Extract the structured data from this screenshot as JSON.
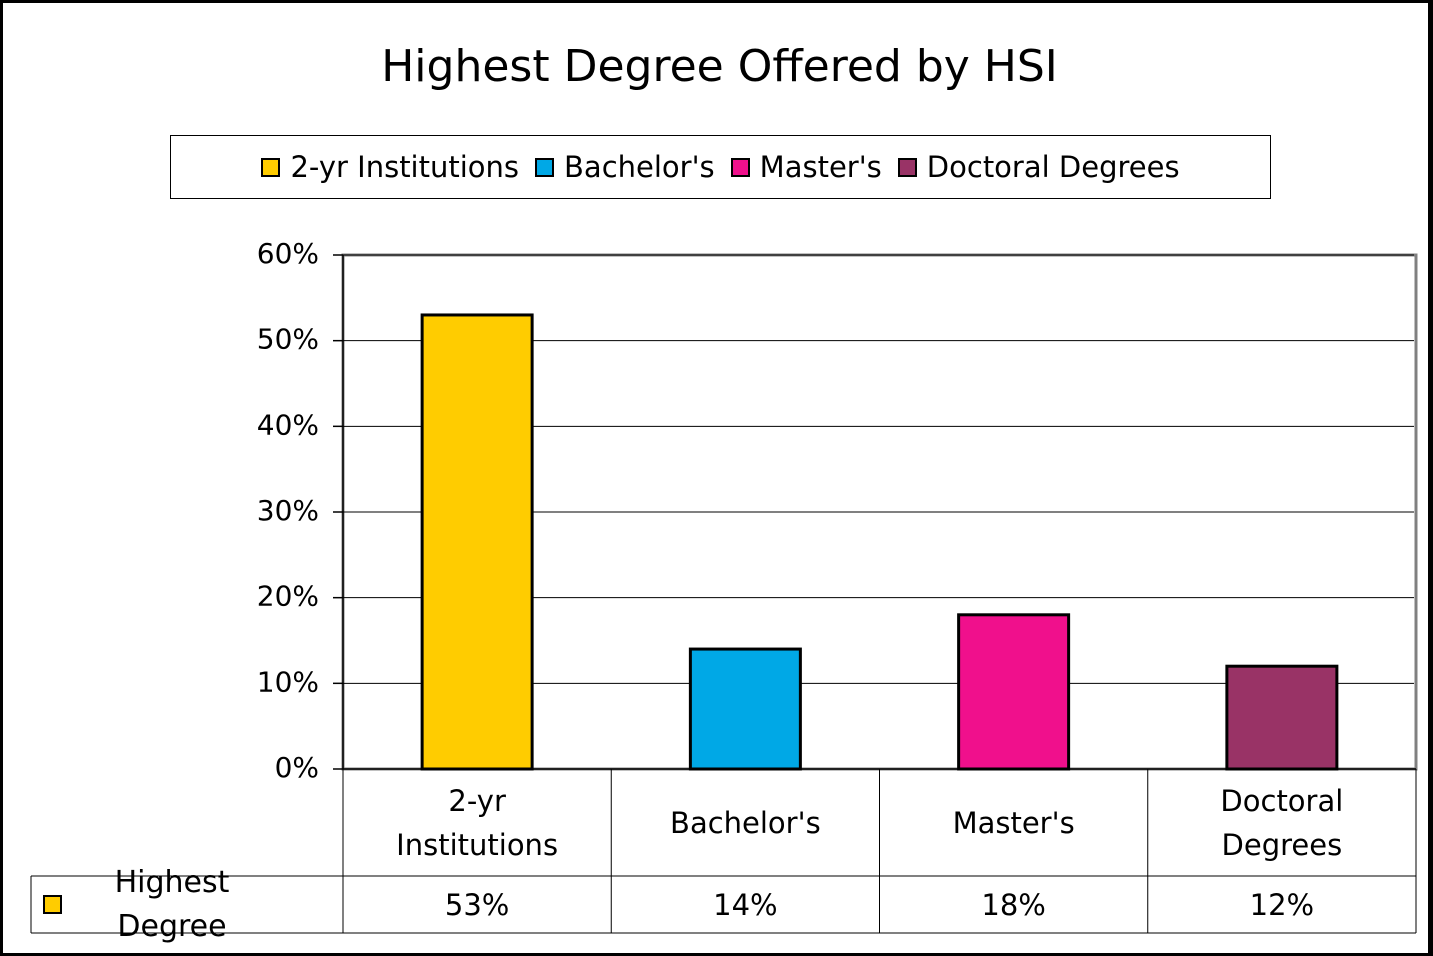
{
  "chart_data": {
    "type": "bar",
    "title": "Highest Degree Offered by HSI",
    "categories": [
      "2-yr Institutions",
      "Bachelor's",
      "Master's",
      "Doctoral Degrees"
    ],
    "colors": [
      "#ffcc00",
      "#00a8e6",
      "#f0108c",
      "#993366"
    ],
    "series": [
      {
        "name": "Highest Degree",
        "color": "#ffcc00",
        "values": [
          53,
          14,
          18,
          12
        ],
        "value_labels": [
          "53%",
          "14%",
          "18%",
          "12%"
        ]
      }
    ],
    "ylim": [
      0,
      60
    ],
    "yticks": [
      {
        "value": 0,
        "label": "0%"
      },
      {
        "value": 10,
        "label": "10%"
      },
      {
        "value": 20,
        "label": "20%"
      },
      {
        "value": 30,
        "label": "30%"
      },
      {
        "value": 40,
        "label": "40%"
      },
      {
        "value": 50,
        "label": "50%"
      },
      {
        "value": 60,
        "label": "60%"
      }
    ],
    "grid": true
  }
}
